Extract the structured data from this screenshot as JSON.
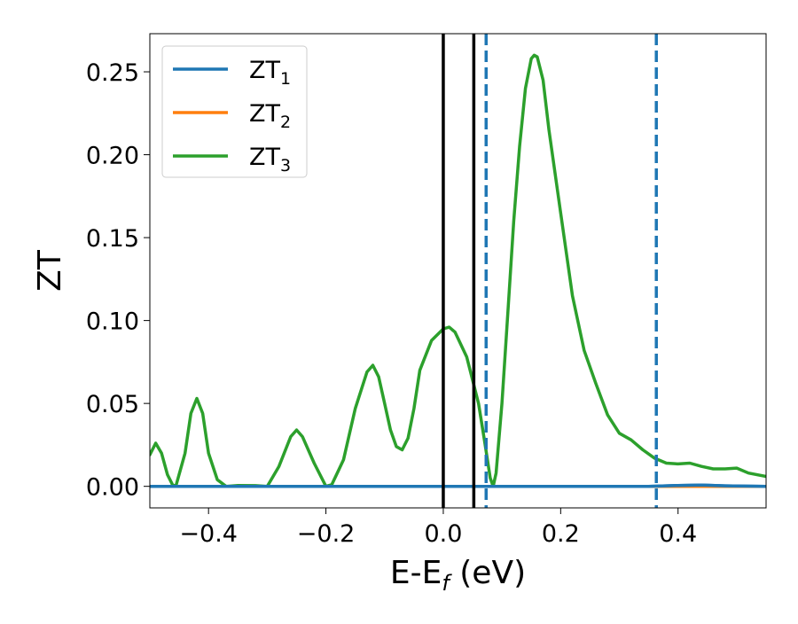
{
  "chart_data": {
    "type": "line",
    "xlabel": "E-E",
    "xlabel_sub": "f",
    "xlabel_unit": " (eV)",
    "ylabel": "ZT",
    "xlim": [
      -0.5,
      0.55
    ],
    "ylim": [
      -0.013,
      0.273
    ],
    "xticks": [
      -0.4,
      -0.2,
      0.0,
      0.2,
      0.4
    ],
    "xtick_labels": [
      "−0.4",
      "−0.2",
      "0.0",
      "0.2",
      "0.4"
    ],
    "yticks": [
      0.0,
      0.05,
      0.1,
      0.15,
      0.2,
      0.25
    ],
    "ytick_labels": [
      "0.00",
      "0.05",
      "0.10",
      "0.15",
      "0.20",
      "0.25"
    ],
    "legend_position": "top-left",
    "series": [
      {
        "name": "ZT",
        "sub": "1",
        "color": "#1f77b4",
        "x": [
          -0.5,
          -0.3,
          0.0,
          0.1,
          0.2,
          0.35,
          0.4,
          0.44,
          0.48,
          0.55
        ],
        "y": [
          0.0,
          0.0,
          0.0,
          0.0,
          0.0,
          0.0,
          0.0005,
          0.0008,
          0.0003,
          0.0
        ]
      },
      {
        "name": "ZT",
        "sub": "2",
        "color": "#ff7f0e",
        "x": [
          -0.5,
          0.55
        ],
        "y": [
          0.0,
          0.0
        ]
      },
      {
        "name": "ZT",
        "sub": "3",
        "color": "#2ca02c",
        "x": [
          -0.5,
          -0.49,
          -0.48,
          -0.47,
          -0.46,
          -0.455,
          -0.44,
          -0.43,
          -0.42,
          -0.41,
          -0.4,
          -0.385,
          -0.37,
          -0.35,
          -0.32,
          -0.3,
          -0.28,
          -0.26,
          -0.25,
          -0.24,
          -0.22,
          -0.2,
          -0.19,
          -0.17,
          -0.15,
          -0.13,
          -0.12,
          -0.11,
          -0.1,
          -0.09,
          -0.08,
          -0.07,
          -0.06,
          -0.05,
          -0.04,
          -0.02,
          0.0,
          0.01,
          0.02,
          0.04,
          0.06,
          0.07,
          0.08,
          0.085,
          0.09,
          0.1,
          0.11,
          0.12,
          0.13,
          0.14,
          0.15,
          0.155,
          0.16,
          0.17,
          0.18,
          0.2,
          0.22,
          0.24,
          0.26,
          0.28,
          0.3,
          0.32,
          0.34,
          0.36,
          0.38,
          0.4,
          0.42,
          0.44,
          0.46,
          0.48,
          0.5,
          0.52,
          0.55
        ],
        "y": [
          0.019,
          0.026,
          0.02,
          0.007,
          0.0,
          0.001,
          0.02,
          0.044,
          0.053,
          0.044,
          0.02,
          0.004,
          0.0,
          0.0005,
          0.0004,
          0.0,
          0.012,
          0.03,
          0.034,
          0.03,
          0.014,
          0.0,
          0.001,
          0.016,
          0.047,
          0.069,
          0.073,
          0.066,
          0.05,
          0.034,
          0.024,
          0.022,
          0.029,
          0.047,
          0.07,
          0.088,
          0.095,
          0.096,
          0.093,
          0.078,
          0.05,
          0.028,
          0.005,
          0.0,
          0.008,
          0.05,
          0.105,
          0.16,
          0.205,
          0.24,
          0.258,
          0.26,
          0.259,
          0.245,
          0.215,
          0.165,
          0.115,
          0.082,
          0.062,
          0.043,
          0.032,
          0.028,
          0.022,
          0.017,
          0.014,
          0.0135,
          0.014,
          0.012,
          0.0105,
          0.0105,
          0.011,
          0.008,
          0.006
        ]
      }
    ],
    "vlines": [
      {
        "x": 0.0,
        "style": "solid",
        "color": "#000000"
      },
      {
        "x": 0.052,
        "style": "solid",
        "color": "#000000"
      },
      {
        "x": 0.073,
        "style": "dashed",
        "color": "#1f77b4"
      },
      {
        "x": 0.363,
        "style": "dashed",
        "color": "#1f77b4"
      }
    ]
  }
}
